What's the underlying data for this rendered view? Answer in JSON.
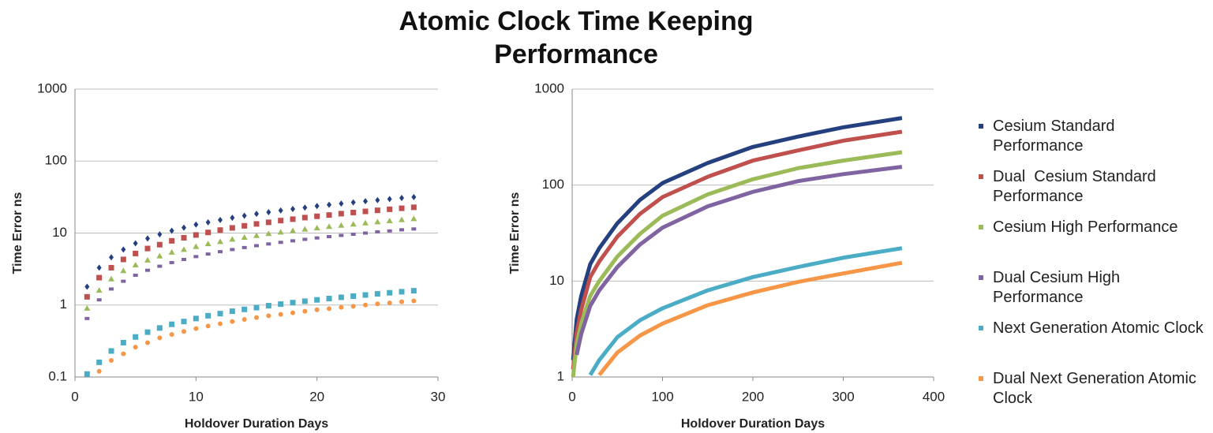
{
  "title": "Atomic Clock Time Keeping Performance",
  "chart_data": [
    {
      "type": "scatter",
      "xlabel": "Holdover Duration Days",
      "ylabel": "Time Error ns",
      "ylog": true,
      "grid": true,
      "xlim": [
        0,
        30
      ],
      "xticks": [
        0,
        10,
        20,
        30
      ],
      "ylim": [
        0.1,
        1000
      ],
      "yticks": [
        0.1,
        1,
        10,
        100,
        1000
      ],
      "x": [
        1,
        2,
        3,
        4,
        5,
        6,
        7,
        8,
        9,
        10,
        11,
        12,
        13,
        14,
        15,
        16,
        17,
        18,
        19,
        20,
        21,
        22,
        23,
        24,
        25,
        26,
        27,
        28
      ],
      "series": [
        {
          "color": "#24407f",
          "marker": "diamond",
          "values": [
            1.8,
            3.3,
            4.6,
            5.9,
            7.2,
            8.4,
            9.6,
            10.8,
            11.9,
            13.1,
            14.1,
            15.2,
            16.3,
            17.4,
            18.5,
            19.5,
            20.6,
            21.6,
            22.6,
            23.7,
            24.7,
            25.7,
            26.7,
            27.7,
            28.7,
            29.7,
            30.7,
            31.6
          ]
        },
        {
          "color": "#c0504d",
          "marker": "square",
          "values": [
            1.3,
            2.4,
            3.3,
            4.3,
            5.2,
            6.1,
            6.9,
            7.8,
            8.6,
            9.4,
            10.2,
            11.0,
            11.8,
            12.6,
            13.4,
            14.1,
            14.9,
            15.6,
            16.4,
            17.1,
            17.8,
            18.6,
            19.3,
            20.0,
            20.7,
            21.4,
            22.1,
            22.8
          ]
        },
        {
          "color": "#9bbb59",
          "marker": "triangle",
          "values": [
            0.9,
            1.6,
            2.3,
            3.0,
            3.6,
            4.2,
            4.8,
            5.4,
            5.9,
            6.5,
            7.1,
            7.6,
            8.2,
            8.7,
            9.2,
            9.8,
            10.3,
            10.8,
            11.3,
            11.8,
            12.3,
            12.8,
            13.3,
            13.8,
            14.3,
            14.8,
            15.3,
            15.8
          ]
        },
        {
          "color": "#8064a2",
          "marker": "dash",
          "values": [
            0.65,
            1.18,
            1.67,
            2.14,
            2.59,
            3.04,
            3.46,
            3.89,
            4.3,
            4.71,
            5.11,
            5.51,
            5.9,
            6.29,
            6.68,
            7.06,
            7.43,
            7.8,
            8.18,
            8.55,
            8.92,
            9.28,
            9.63,
            10.0,
            10.4,
            10.7,
            11.1,
            11.4
          ]
        },
        {
          "color": "#4bacc6",
          "marker": "square",
          "values": [
            0.11,
            0.16,
            0.23,
            0.3,
            0.36,
            0.42,
            0.48,
            0.54,
            0.59,
            0.65,
            0.71,
            0.76,
            0.82,
            0.87,
            0.92,
            0.98,
            1.03,
            1.08,
            1.13,
            1.18,
            1.23,
            1.28,
            1.33,
            1.38,
            1.43,
            1.48,
            1.53,
            1.58
          ]
        },
        {
          "color": "#f79646",
          "marker": "circle",
          "values": [
            null,
            0.12,
            0.17,
            0.21,
            0.26,
            0.3,
            0.35,
            0.39,
            0.43,
            0.47,
            0.51,
            0.55,
            0.59,
            0.63,
            0.67,
            0.71,
            0.74,
            0.78,
            0.82,
            0.86,
            0.89,
            0.93,
            0.96,
            1.0,
            1.04,
            1.07,
            1.11,
            1.14
          ]
        }
      ]
    },
    {
      "type": "line",
      "xlabel": "Holdover Duration Days",
      "ylabel": "Time Error ns",
      "ylog": true,
      "grid": true,
      "xlim": [
        0,
        400
      ],
      "xticks": [
        0,
        100,
        200,
        300,
        400
      ],
      "ylim": [
        1,
        1000
      ],
      "yticks": [
        1,
        10,
        100,
        1000
      ],
      "legend": "right",
      "x": [
        1,
        5,
        10,
        20,
        30,
        50,
        75,
        100,
        150,
        200,
        250,
        300,
        365
      ],
      "series": [
        {
          "name": "Cesium Standard Performance",
          "color": "#24407f",
          "values": [
            1.5,
            4,
            7,
            15,
            22,
            40,
            70,
            105,
            170,
            250,
            320,
            400,
            500
          ]
        },
        {
          "name": "Dual  Cesium Standard Performance",
          "color": "#c0504d",
          "values": [
            1.2,
            2.9,
            5,
            11,
            16,
            29,
            50,
            75,
            122,
            180,
            230,
            290,
            360
          ]
        },
        {
          "name": "Cesium High Performance",
          "color": "#9bbb59",
          "values": [
            1,
            2.2,
            3.6,
            7,
            10,
            18,
            31,
            48,
            80,
            115,
            150,
            180,
            220
          ]
        },
        {
          "name": "Dual Cesium High Performance",
          "color": "#8064a2",
          "values": [
            null,
            1.7,
            2.8,
            5.5,
            8,
            14,
            24,
            36,
            60,
            85,
            110,
            130,
            155
          ]
        },
        {
          "name": "Next Generation Atomic Clock",
          "color": "#4bacc6",
          "values": [
            null,
            null,
            null,
            1.05,
            1.5,
            2.6,
            3.9,
            5.2,
            8,
            11,
            14,
            17.5,
            22
          ]
        },
        {
          "name": "Dual Next Generation Atomic Clock",
          "color": "#f79646",
          "values": [
            null,
            null,
            null,
            null,
            1.05,
            1.8,
            2.7,
            3.6,
            5.6,
            7.6,
            9.8,
            12,
            15.5
          ]
        }
      ]
    }
  ]
}
